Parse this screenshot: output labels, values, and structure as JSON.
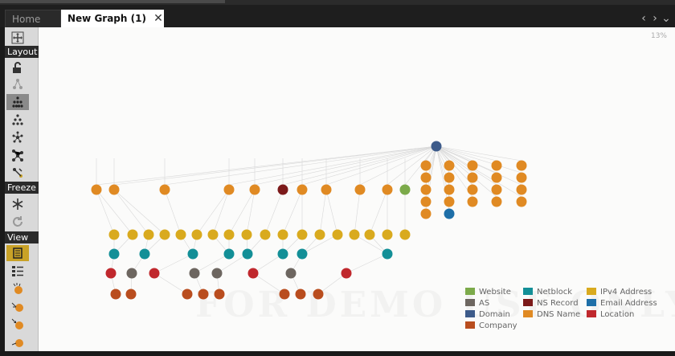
{
  "tabs": {
    "home_label": "Home",
    "active_label": "New Graph (1)"
  },
  "toolbar": {
    "layout_label": "Layout",
    "freeze_label": "Freeze",
    "view_label": "View"
  },
  "canvas": {
    "zoom_level": "13%",
    "watermark": "FOR DEMO USE ONLY"
  },
  "legend": [
    {
      "label": "Website",
      "color": "#7caa4a"
    },
    {
      "label": "Netblock",
      "color": "#138f97"
    },
    {
      "label": "IPv4 Address",
      "color": "#d9aa1e"
    },
    {
      "label": "AS",
      "color": "#6d6660"
    },
    {
      "label": "NS Record",
      "color": "#7c1a1a"
    },
    {
      "label": "Email Address",
      "color": "#1e6fa8"
    },
    {
      "label": "Domain",
      "color": "#3d5b8a"
    },
    {
      "label": "DNS Name",
      "color": "#e08a23"
    },
    {
      "label": "Location",
      "color": "#c0282d"
    },
    {
      "label": "Company",
      "color": "#b94d1e"
    }
  ],
  "colors": {
    "dns": "#e08a23",
    "domain": "#3d5b8a",
    "ns": "#7c1a1a",
    "website": "#7caa4a",
    "email": "#1e6fa8",
    "ipv4": "#d9aa1e",
    "netblock": "#138f97",
    "location": "#c0282d",
    "as": "#6d6660",
    "company": "#b94d1e"
  },
  "icons": {
    "move": "move-icon",
    "lock": "unlock-icon",
    "freeze": "snowflake-icon",
    "refresh": "refresh-icon"
  }
}
